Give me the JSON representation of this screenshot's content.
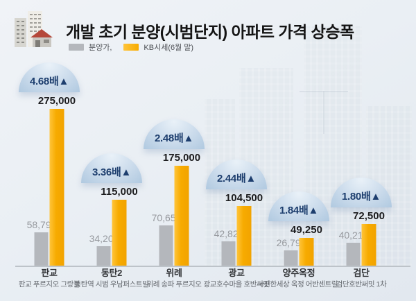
{
  "header": {
    "title": "개발 초기 분양(시범단지) 아파트 가격 상승폭",
    "icon": "apartment-buildings-icon",
    "legend": [
      {
        "label": "분양가,",
        "color": "#b4b7bc"
      },
      {
        "label": "KB시세(6월 말)",
        "color": "#f7ab00"
      }
    ]
  },
  "colors": {
    "background": "#eaeff4",
    "bar_bunyang": "#b4b7bc",
    "bar_kb": "#f7ab00",
    "badge_bg": "#c9d9ea",
    "badge_text": "#1d3e6e",
    "kb_value_text": "#1c1c1e",
    "bunyang_value_text": "#96999e",
    "axis_line": "#bdc3c9"
  },
  "chart_data": {
    "type": "bar",
    "title": "개발 초기 분양(시범단지) 아파트 가격 상승폭",
    "xlabel": "",
    "ylabel": "",
    "ylim": [
      0,
      275000
    ],
    "grid": false,
    "legend_position": "top-left",
    "categories": [
      "판교",
      "동탄2",
      "위례",
      "광교",
      "양주옥정",
      "검단"
    ],
    "complex_names": [
      "판교 푸르지오 그랑블",
      "동탄역 시범 우남퍼스트빌",
      "위례 송파 푸르지오",
      "광교호수마을 호반써밋",
      "e편한세상 옥정 어반센트럴",
      "검단호반써밋 1차"
    ],
    "series": [
      {
        "name": "분양가,",
        "color": "#b4b7bc",
        "values": [
          58790,
          34200,
          70650,
          42821,
          26791,
          40210
        ]
      },
      {
        "name": "KB시세(6월 말)",
        "color": "#f7ab00",
        "values": [
          275000,
          115000,
          175000,
          104500,
          49250,
          72500
        ]
      }
    ],
    "value_labels": {
      "bunyang": [
        "58,790",
        "34,200",
        "70,650",
        "42,821",
        "26,791",
        "40,210"
      ],
      "kb": [
        "275,000",
        "115,000",
        "175,000",
        "104,500",
        "49,250",
        "72,500"
      ]
    },
    "ratio_badges": [
      "4.68배",
      "3.36배",
      "2.48배",
      "2.44배",
      "1.84배",
      "1.80배"
    ],
    "ratio_arrow": "▲"
  }
}
